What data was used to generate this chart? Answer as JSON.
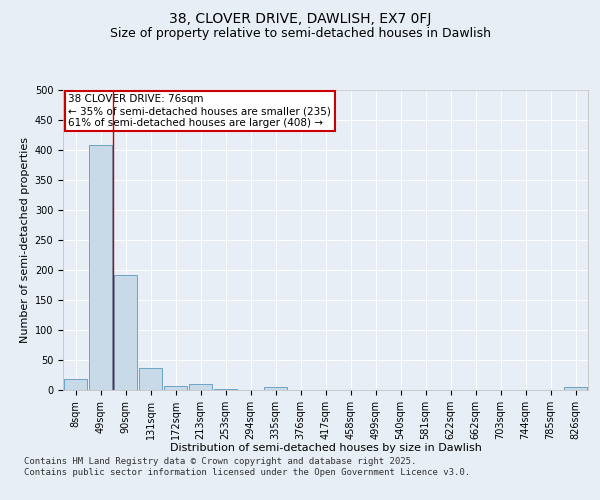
{
  "title_line1": "38, CLOVER DRIVE, DAWLISH, EX7 0FJ",
  "title_line2": "Size of property relative to semi-detached houses in Dawlish",
  "xlabel": "Distribution of semi-detached houses by size in Dawlish",
  "ylabel": "Number of semi-detached properties",
  "categories": [
    "8sqm",
    "49sqm",
    "90sqm",
    "131sqm",
    "172sqm",
    "213sqm",
    "253sqm",
    "294sqm",
    "335sqm",
    "376sqm",
    "417sqm",
    "458sqm",
    "499sqm",
    "540sqm",
    "581sqm",
    "622sqm",
    "662sqm",
    "703sqm",
    "744sqm",
    "785sqm",
    "826sqm"
  ],
  "values": [
    18,
    408,
    192,
    36,
    7,
    10,
    2,
    0,
    5,
    0,
    0,
    0,
    0,
    0,
    0,
    0,
    0,
    0,
    0,
    0,
    5
  ],
  "bar_color": "#c8d9e8",
  "bar_edge_color": "#5a9abf",
  "vline_x": 1.5,
  "vline_color": "#cc0000",
  "annotation_box_text": "38 CLOVER DRIVE: 76sqm\n← 35% of semi-detached houses are smaller (235)\n61% of semi-detached houses are larger (408) →",
  "annotation_box_color": "#cc0000",
  "annotation_text_color": "#000000",
  "background_color": "#e8eef5",
  "plot_bg_color": "#e8eef5",
  "ylim": [
    0,
    500
  ],
  "yticks": [
    0,
    50,
    100,
    150,
    200,
    250,
    300,
    350,
    400,
    450,
    500
  ],
  "footer_text": "Contains HM Land Registry data © Crown copyright and database right 2025.\nContains public sector information licensed under the Open Government Licence v3.0.",
  "title_fontsize": 10,
  "subtitle_fontsize": 9,
  "axis_label_fontsize": 8,
  "tick_fontsize": 7,
  "annotation_fontsize": 7.5,
  "footer_fontsize": 6.5
}
